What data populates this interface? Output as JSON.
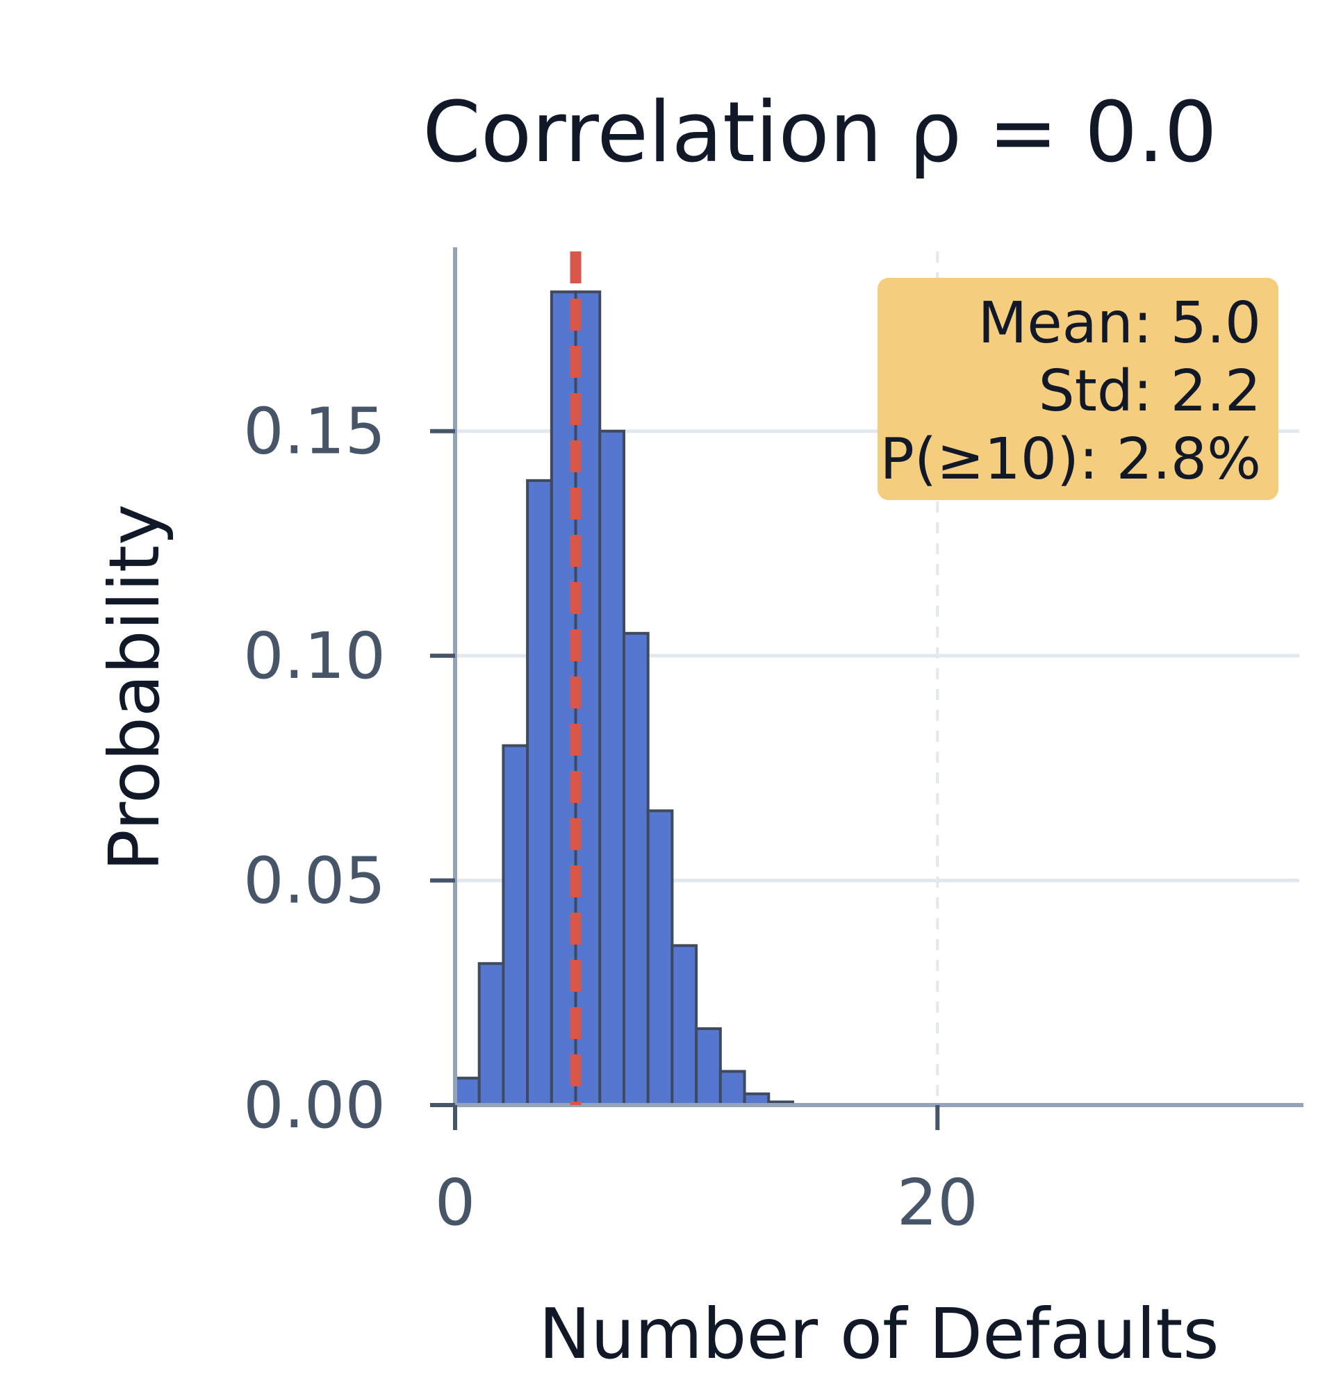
{
  "chart_data": {
    "type": "bar",
    "title": "Correlation ρ = 0.0",
    "xlabel": "Number of Defaults",
    "ylabel": "Probability",
    "x_ticks": [
      "0",
      "20"
    ],
    "y_ticks": [
      "0.00",
      "0.05",
      "0.10",
      "0.15"
    ],
    "xlim": [
      0,
      35
    ],
    "ylim": [
      0,
      0.19
    ],
    "grid": true,
    "bins": [
      0,
      1,
      2,
      3,
      4,
      5,
      6,
      7,
      8,
      9,
      10,
      11,
      12,
      13
    ],
    "bin_width": 1,
    "values": [
      0.006,
      0.0315,
      0.08,
      0.139,
      0.181,
      0.181,
      0.15,
      0.105,
      0.0655,
      0.0355,
      0.017,
      0.0075,
      0.0025,
      0.0007
    ],
    "mean_line": 5.0,
    "reference_line": 20,
    "stats_box": {
      "mean": "Mean: 5.0",
      "std": "Std: 2.2",
      "tail": "P(≥10): 2.8%"
    },
    "colors": {
      "bar_fill": "#5577d0",
      "bar_edge": "#3f4a5f",
      "mean_line": "#d9574a",
      "stats_box_bg": "#f5cd7e",
      "grid": "#e2e8f0",
      "axis": "#94a3b8"
    }
  }
}
